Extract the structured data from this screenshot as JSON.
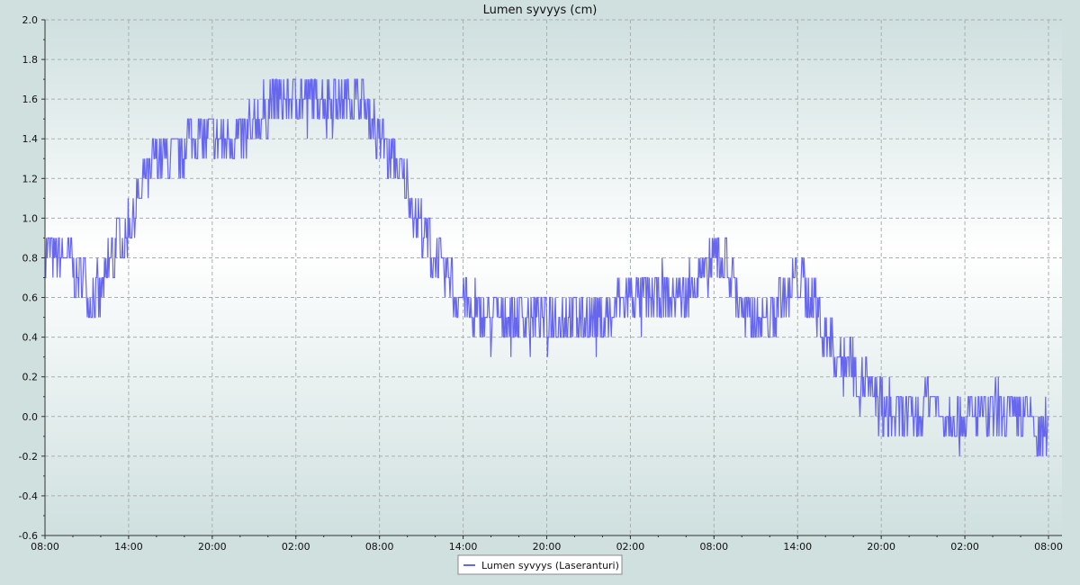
{
  "chart_data": {
    "type": "line",
    "title": "Lumen syvyys (cm)",
    "xlabel": "",
    "ylabel": "",
    "ylim": [
      -0.6,
      2.0
    ],
    "y_ticks": [
      "2.0",
      "1.8",
      "1.6",
      "1.4",
      "1.2",
      "1.0",
      "0.8",
      "0.6",
      "0.4",
      "0.2",
      "0.0",
      "-0.2",
      "-0.4",
      "-0.6"
    ],
    "y_tick_values": [
      2.0,
      1.8,
      1.6,
      1.4,
      1.2,
      1.0,
      0.8,
      0.6,
      0.4,
      0.2,
      0.0,
      -0.2,
      -0.4,
      -0.6
    ],
    "x_ticks": [
      "08:00",
      "14:00",
      "20:00",
      "02:00",
      "08:00",
      "14:00",
      "20:00",
      "02:00",
      "08:00",
      "14:00",
      "20:00",
      "02:00",
      "08:00"
    ],
    "x_range_hours": [
      0,
      72
    ],
    "grid": true,
    "legend_position": "bottom-center",
    "series": [
      {
        "name": "Lumen syvyys (Laseranturi)",
        "color": "#6666ee",
        "x_hours": [
          0,
          1,
          2,
          3,
          4,
          5,
          6,
          7,
          8,
          9,
          10,
          11,
          12,
          13,
          14,
          15,
          16,
          17,
          18,
          19,
          20,
          21,
          22,
          23,
          24,
          25,
          26,
          27,
          28,
          29,
          30,
          31,
          32,
          33,
          34,
          35,
          36,
          37,
          38,
          39,
          40,
          41,
          42,
          43,
          44,
          45,
          46,
          47,
          48,
          49,
          50,
          51,
          52,
          53,
          54,
          55,
          56,
          57,
          58,
          59,
          60,
          61,
          62,
          63,
          64,
          65,
          66,
          67,
          68,
          69,
          70,
          71,
          72
        ],
        "values": [
          0.8,
          0.8,
          0.75,
          0.65,
          0.6,
          0.85,
          0.95,
          1.15,
          1.3,
          1.33,
          1.35,
          1.35,
          1.35,
          1.35,
          1.38,
          1.45,
          1.55,
          1.58,
          1.6,
          1.58,
          1.58,
          1.6,
          1.6,
          1.55,
          1.4,
          1.3,
          1.15,
          0.95,
          0.8,
          0.68,
          0.58,
          0.5,
          0.45,
          0.45,
          0.45,
          0.45,
          0.45,
          0.45,
          0.45,
          0.48,
          0.5,
          0.55,
          0.58,
          0.6,
          0.62,
          0.62,
          0.62,
          0.7,
          0.78,
          0.75,
          0.55,
          0.45,
          0.5,
          0.6,
          0.68,
          0.62,
          0.4,
          0.3,
          0.25,
          0.15,
          0.05,
          0.0,
          0.0,
          0.05,
          0.05,
          0.0,
          0.0,
          0.0,
          0.0,
          0.0,
          -0.02,
          -0.05,
          -0.1
        ],
        "spread": 0.12
      }
    ]
  }
}
